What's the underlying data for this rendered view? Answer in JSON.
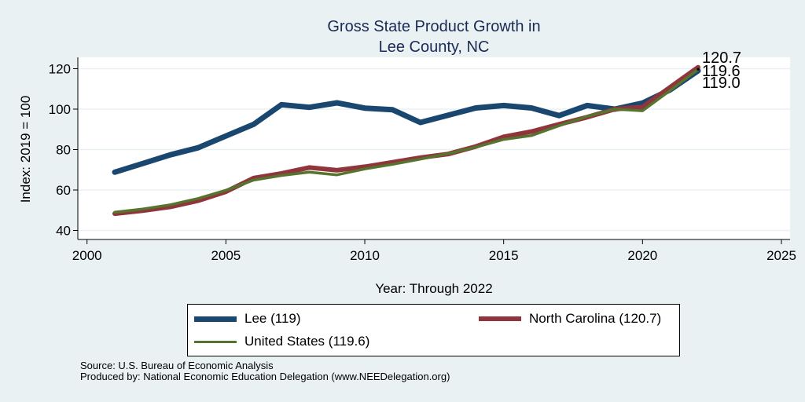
{
  "chart_data": {
    "type": "line",
    "title": [
      "Gross State Product Growth in",
      "Lee County, NC"
    ],
    "xlabel": "Year: Through 2022",
    "ylabel": "Index: 2019 = 100",
    "xlim": [
      2000,
      2025
    ],
    "ylim": [
      40,
      120
    ],
    "xticks": [
      2000,
      2005,
      2010,
      2015,
      2020,
      2025
    ],
    "yticks": [
      40,
      60,
      80,
      100,
      120
    ],
    "grid": "horizontal",
    "x": [
      2001,
      2002,
      2003,
      2004,
      2005,
      2006,
      2007,
      2008,
      2009,
      2010,
      2011,
      2012,
      2013,
      2014,
      2015,
      2016,
      2017,
      2018,
      2019,
      2020,
      2021,
      2022
    ],
    "series": [
      {
        "name": "Lee",
        "legend": "Lee  (119)",
        "color": "#1a476f",
        "values": [
          68.8,
          73.1,
          77.4,
          80.9,
          86.7,
          92.5,
          102.2,
          100.9,
          103.1,
          100.5,
          99.7,
          93.4,
          97.0,
          100.6,
          101.8,
          100.6,
          96.8,
          101.8,
          100.0,
          103.0,
          109.6,
          119.0
        ]
      },
      {
        "name": "North Carolina",
        "legend": "North Carolina (120.7)",
        "color": "#90353b",
        "values": [
          48.3,
          49.8,
          51.7,
          54.7,
          59.2,
          65.9,
          68.2,
          71.1,
          69.8,
          71.5,
          73.7,
          76.0,
          77.8,
          81.5,
          86.3,
          88.9,
          92.5,
          96.0,
          100.0,
          101.0,
          110.9,
          120.7
        ]
      },
      {
        "name": "United States",
        "legend": "United States (119.6)",
        "color": "#55752f",
        "values": [
          49.0,
          50.6,
          52.7,
          55.8,
          59.9,
          64.9,
          67.2,
          68.8,
          67.5,
          70.4,
          72.7,
          75.3,
          78.0,
          81.2,
          85.0,
          86.9,
          91.8,
          96.4,
          100.0,
          99.2,
          109.3,
          119.6
        ]
      }
    ],
    "end_labels": [
      "120.7",
      "119.6",
      "119.0"
    ],
    "legend_position": "bottom"
  },
  "footer": {
    "source": "Source: U.S. Bureau of Economic Analysis",
    "produced_by": "Produced by: National Economic Education Delegation (www.NEEDelegation.org)"
  }
}
